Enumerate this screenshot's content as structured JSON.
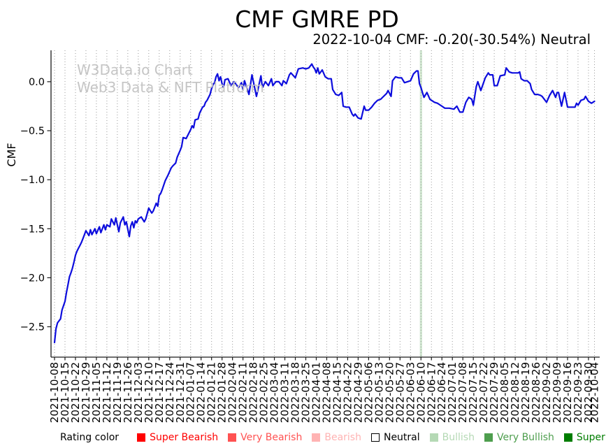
{
  "title": "CMF GMRE PD",
  "subtitle": "2022-10-04 CMF: -0.20(-30.54%) Neutral",
  "watermark": {
    "line1": "W3Data.io Chart",
    "line2": "Web3 Data & NFT Platform",
    "color": "#c5c5c5"
  },
  "legend": {
    "label": "Rating color",
    "items": [
      {
        "label": "Super Bearish",
        "color": "#ff0000"
      },
      {
        "label": "Very Bearish",
        "color": "#ff5252"
      },
      {
        "label": "Bearish",
        "color": "#ffb3b3"
      },
      {
        "label": "Neutral",
        "color": "#ffffff",
        "border": "#000000",
        "text_color": "#000000"
      },
      {
        "label": "Bullish",
        "color": "#b5d9b5"
      },
      {
        "label": "Very Bullish",
        "color": "#4e9e4e"
      },
      {
        "label": "Super Bullish",
        "color": "#007d00"
      }
    ]
  },
  "chart_data": {
    "type": "line",
    "title": "CMF GMRE PD",
    "subtitle": "2022-10-04 CMF: -0.20(-30.54%) Neutral",
    "xlabel": "",
    "ylabel": "CMF",
    "series_name": "CMF",
    "line_color": "#0d0ddd",
    "grid": "vertical dotted lines at weekly ticks",
    "grid_color": "#999999",
    "axis_color": "#1a1a1a",
    "ylim": [
      -2.81,
      0.32
    ],
    "y_ticks": [
      0.0,
      -0.5,
      -1.0,
      -1.5,
      -2.0,
      -2.5
    ],
    "x_start_date": "2021-10-08",
    "x_end_date": "2022-10-04",
    "x_tick_labels": [
      "2021-10-08",
      "2021-10-15",
      "2021-10-22",
      "2021-10-29",
      "2021-11-05",
      "2021-11-12",
      "2021-11-19",
      "2021-11-26",
      "2021-12-03",
      "2021-12-10",
      "2021-12-17",
      "2021-12-24",
      "2021-12-31",
      "2022-01-07",
      "2022-01-14",
      "2022-01-21",
      "2022-01-28",
      "2022-02-04",
      "2022-02-11",
      "2022-02-18",
      "2022-02-25",
      "2022-03-04",
      "2022-03-11",
      "2022-03-18",
      "2022-03-25",
      "2022-04-01",
      "2022-04-08",
      "2022-04-15",
      "2022-04-22",
      "2022-04-29",
      "2022-05-06",
      "2022-05-13",
      "2022-05-20",
      "2022-05-27",
      "2022-06-03",
      "2022-06-10",
      "2022-06-17",
      "2022-06-24",
      "2022-07-01",
      "2022-07-08",
      "2022-07-15",
      "2022-07-22",
      "2022-07-29",
      "2022-08-05",
      "2022-08-12",
      "2022-08-19",
      "2022-08-26",
      "2022-09-02",
      "2022-09-09",
      "2022-09-16",
      "2022-09-23",
      "2022-09-30",
      "2022-10-04"
    ],
    "event_band": {
      "date": "2022-06-10",
      "color": "#cfe6cf"
    },
    "points_format": "[days_since_2021-10-08, CMF_value]",
    "points": [
      [
        0,
        -2.66
      ],
      [
        1,
        -2.52
      ],
      [
        2,
        -2.46
      ],
      [
        3,
        -2.44
      ],
      [
        4,
        -2.42
      ],
      [
        5,
        -2.33
      ],
      [
        7,
        -2.24
      ],
      [
        8,
        -2.15
      ],
      [
        9,
        -2.07
      ],
      [
        10,
        -1.99
      ],
      [
        11,
        -1.95
      ],
      [
        12,
        -1.9
      ],
      [
        13,
        -1.84
      ],
      [
        14,
        -1.77
      ],
      [
        15,
        -1.73
      ],
      [
        16,
        -1.7
      ],
      [
        17,
        -1.67
      ],
      [
        18,
        -1.64
      ],
      [
        19,
        -1.6
      ],
      [
        20,
        -1.56
      ],
      [
        21,
        -1.52
      ],
      [
        23,
        -1.57
      ],
      [
        24,
        -1.51
      ],
      [
        25,
        -1.56
      ],
      [
        27,
        -1.5
      ],
      [
        28,
        -1.55
      ],
      [
        30,
        -1.48
      ],
      [
        31,
        -1.54
      ],
      [
        33,
        -1.46
      ],
      [
        34,
        -1.51
      ],
      [
        35,
        -1.46
      ],
      [
        37,
        -1.48
      ],
      [
        38,
        -1.4
      ],
      [
        40,
        -1.46
      ],
      [
        41,
        -1.39
      ],
      [
        43,
        -1.53
      ],
      [
        44,
        -1.44
      ],
      [
        46,
        -1.38
      ],
      [
        47,
        -1.46
      ],
      [
        48,
        -1.43
      ],
      [
        50,
        -1.58
      ],
      [
        51,
        -1.47
      ],
      [
        52,
        -1.43
      ],
      [
        53,
        -1.49
      ],
      [
        54,
        -1.42
      ],
      [
        55,
        -1.44
      ],
      [
        56,
        -1.4
      ],
      [
        58,
        -1.38
      ],
      [
        60,
        -1.43
      ],
      [
        61,
        -1.4
      ],
      [
        63,
        -1.29
      ],
      [
        65,
        -1.34
      ],
      [
        66,
        -1.32
      ],
      [
        68,
        -1.24
      ],
      [
        69,
        -1.27
      ],
      [
        70,
        -1.16
      ],
      [
        71,
        -1.14
      ],
      [
        72,
        -1.1
      ],
      [
        74,
        -1.01
      ],
      [
        76,
        -0.95
      ],
      [
        78,
        -0.88
      ],
      [
        79,
        -0.86
      ],
      [
        81,
        -0.83
      ],
      [
        82,
        -0.77
      ],
      [
        84,
        -0.7
      ],
      [
        85,
        -0.66
      ],
      [
        86,
        -0.57
      ],
      [
        88,
        -0.58
      ],
      [
        90,
        -0.52
      ],
      [
        91,
        -0.49
      ],
      [
        92,
        -0.45
      ],
      [
        93,
        -0.47
      ],
      [
        94,
        -0.39
      ],
      [
        96,
        -0.38
      ],
      [
        97,
        -0.32
      ],
      [
        98,
        -0.29
      ],
      [
        99,
        -0.26
      ],
      [
        100,
        -0.25
      ],
      [
        101,
        -0.21
      ],
      [
        102,
        -0.19
      ],
      [
        104,
        -0.13
      ],
      [
        105,
        -0.07
      ],
      [
        106,
        -0.03
      ],
      [
        107,
        -0.01
      ],
      [
        108,
        0.05
      ],
      [
        109,
        0.08
      ],
      [
        110,
        0.01
      ],
      [
        111,
        0.05
      ],
      [
        112,
        -0.02
      ],
      [
        113,
        -0.06
      ],
      [
        114,
        0.02
      ],
      [
        116,
        0.03
      ],
      [
        118,
        -0.04
      ],
      [
        120,
        0
      ],
      [
        123,
        -0.06
      ],
      [
        125,
        -0.01
      ],
      [
        126,
        -0.08
      ],
      [
        127,
        0.01
      ],
      [
        130,
        -0.13
      ],
      [
        132,
        0.07
      ],
      [
        135,
        -0.15
      ],
      [
        138,
        0.06
      ],
      [
        139,
        -0.06
      ],
      [
        141,
        0
      ],
      [
        143,
        -0.04
      ],
      [
        145,
        0.03
      ],
      [
        146,
        -0.04
      ],
      [
        148,
        0
      ],
      [
        150,
        0
      ],
      [
        152,
        -0.04
      ],
      [
        153,
        0.01
      ],
      [
        155,
        -0.02
      ],
      [
        157,
        0.07
      ],
      [
        158,
        0.09
      ],
      [
        161,
        0.04
      ],
      [
        163,
        0.13
      ],
      [
        166,
        0.14
      ],
      [
        168,
        0.13
      ],
      [
        170,
        0.14
      ],
      [
        172,
        0.18
      ],
      [
        173,
        0.15
      ],
      [
        174,
        0.13
      ],
      [
        175,
        0.09
      ],
      [
        176,
        0.14
      ],
      [
        177,
        0.08
      ],
      [
        179,
        0.12
      ],
      [
        181,
        0.05
      ],
      [
        183,
        0.03
      ],
      [
        185,
        0.03
      ],
      [
        186,
        -0.08
      ],
      [
        188,
        -0.13
      ],
      [
        190,
        -0.14
      ],
      [
        192,
        -0.11
      ],
      [
        193,
        -0.25
      ],
      [
        195,
        -0.26
      ],
      [
        197,
        -0.26
      ],
      [
        199,
        -0.33
      ],
      [
        200,
        -0.35
      ],
      [
        201,
        -0.33
      ],
      [
        203,
        -0.37
      ],
      [
        205,
        -0.38
      ],
      [
        207,
        -0.25
      ],
      [
        208,
        -0.29
      ],
      [
        210,
        -0.29
      ],
      [
        212,
        -0.26
      ],
      [
        214,
        -0.22
      ],
      [
        216,
        -0.19
      ],
      [
        218,
        -0.18
      ],
      [
        220,
        -0.15
      ],
      [
        222,
        -0.12
      ],
      [
        223,
        -0.09
      ],
      [
        225,
        -0.15
      ],
      [
        226,
        0.01
      ],
      [
        228,
        0.05
      ],
      [
        230,
        0.04
      ],
      [
        232,
        0.04
      ],
      [
        234,
        -0.01
      ],
      [
        236,
        0
      ],
      [
        238,
        0.01
      ],
      [
        240,
        0.08
      ],
      [
        242,
        0.11
      ],
      [
        243,
        0.11
      ],
      [
        244,
        -0.02
      ],
      [
        245,
        -0.06
      ],
      [
        246,
        -0.11
      ],
      [
        247,
        -0.16
      ],
      [
        249,
        -0.11
      ],
      [
        251,
        -0.18
      ],
      [
        254,
        -0.21
      ],
      [
        256,
        -0.22
      ],
      [
        258,
        -0.24
      ],
      [
        261,
        -0.27
      ],
      [
        264,
        -0.27
      ],
      [
        267,
        -0.28
      ],
      [
        269,
        -0.25
      ],
      [
        271,
        -0.31
      ],
      [
        273,
        -0.31
      ],
      [
        275,
        -0.21
      ],
      [
        277,
        -0.16
      ],
      [
        279,
        -0.18
      ],
      [
        280,
        -0.24
      ],
      [
        282,
        -0.05
      ],
      [
        283,
        0
      ],
      [
        285,
        -0.09
      ],
      [
        288,
        0.04
      ],
      [
        290,
        0.09
      ],
      [
        291,
        0.07
      ],
      [
        293,
        0.07
      ],
      [
        294,
        -0.04
      ],
      [
        296,
        -0.04
      ],
      [
        298,
        0.06
      ],
      [
        301,
        0.07
      ],
      [
        302,
        0.14
      ],
      [
        304,
        0.1
      ],
      [
        306,
        0.09
      ],
      [
        308,
        0.09
      ],
      [
        310,
        0.09
      ],
      [
        311,
        0.1
      ],
      [
        312,
        0.03
      ],
      [
        314,
        0.01
      ],
      [
        316,
        0.01
      ],
      [
        318,
        -0.02
      ],
      [
        319,
        -0.08
      ],
      [
        321,
        -0.13
      ],
      [
        323,
        -0.13
      ],
      [
        325,
        -0.14
      ],
      [
        326,
        -0.15
      ],
      [
        329,
        -0.21
      ],
      [
        331,
        -0.14
      ],
      [
        333,
        -0.09
      ],
      [
        335,
        -0.16
      ],
      [
        336,
        -0.11
      ],
      [
        337,
        -0.11
      ],
      [
        339,
        -0.25
      ],
      [
        341,
        -0.11
      ],
      [
        343,
        -0.26
      ],
      [
        346,
        -0.26
      ],
      [
        348,
        -0.26
      ],
      [
        349,
        -0.22
      ],
      [
        350,
        -0.24
      ],
      [
        352,
        -0.19
      ],
      [
        354,
        -0.18
      ],
      [
        355,
        -0.15
      ],
      [
        357,
        -0.2
      ],
      [
        359,
        -0.22
      ],
      [
        360,
        -0.21
      ],
      [
        361,
        -0.2
      ]
    ]
  }
}
